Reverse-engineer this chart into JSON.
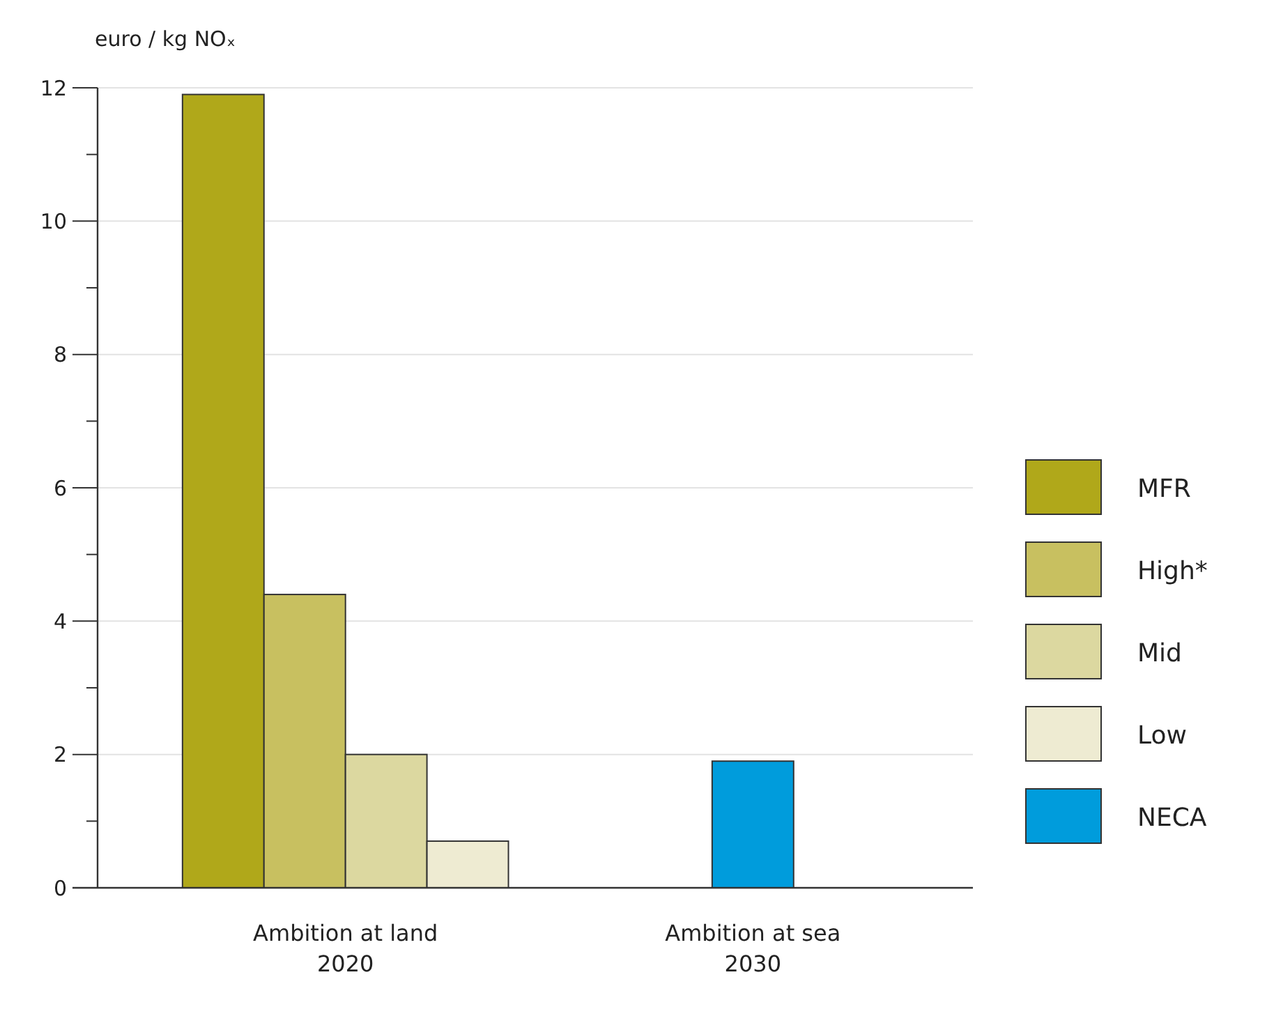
{
  "chart_data": {
    "type": "bar",
    "ylabel": "euro / kg NOₓ",
    "categories": [
      "Ambition at land\n2020",
      "Ambition at sea\n2030"
    ],
    "series": [
      {
        "name": "MFR",
        "color": "#b0a81a",
        "values": [
          11.9,
          null
        ]
      },
      {
        "name": "High*",
        "color": "#c8c060",
        "values": [
          4.4,
          null
        ]
      },
      {
        "name": "Mid",
        "color": "#dcd8a0",
        "values": [
          2.0,
          null
        ]
      },
      {
        "name": "Low",
        "color": "#eeebd2",
        "values": [
          0.7,
          null
        ]
      },
      {
        "name": "NECA",
        "color": "#009cdc",
        "values": [
          null,
          1.9
        ]
      }
    ],
    "ylim": [
      0,
      12
    ],
    "yticks": [
      0,
      {
        "value": 1,
        "label": null
      },
      2,
      {
        "value": 3,
        "label": null
      },
      4,
      {
        "value": 5,
        "label": null
      },
      6,
      {
        "value": 7,
        "label": null
      },
      8,
      {
        "value": 9,
        "label": null
      },
      10,
      {
        "value": 11,
        "label": null
      },
      12
    ],
    "grid": "y",
    "legend": "right"
  }
}
